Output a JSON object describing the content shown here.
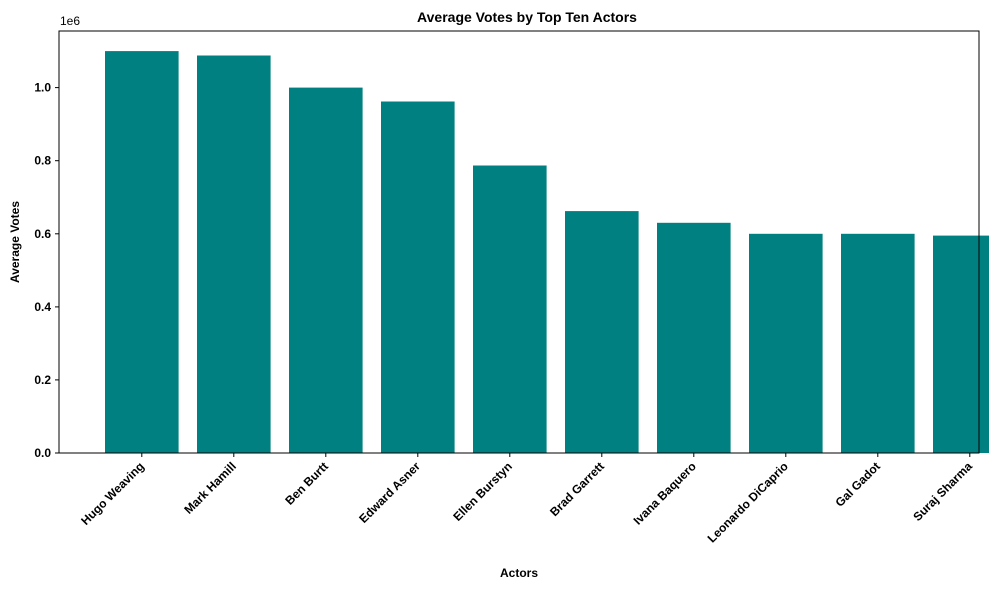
{
  "chart_data": {
    "type": "bar",
    "title": "Average Votes by Top Ten Actors",
    "xlabel": "Actors",
    "ylabel": "Average Votes",
    "y_offset_label": "1e6",
    "categories": [
      "Hugo Weaving",
      "Mark Hamill",
      "Ben Burtt",
      "Edward Asner",
      "Ellen Burstyn",
      "Brad Garrett",
      "Ivana Baquero",
      "Leonardo DiCaprio",
      "Gal Gadot",
      "Suraj Sharma"
    ],
    "values": [
      1100000,
      1088000,
      1000000,
      962000,
      787000,
      662000,
      630000,
      600000,
      600000,
      595000
    ],
    "ylim": [
      0,
      1100000
    ],
    "yticks": [
      0,
      200000,
      400000,
      600000,
      800000,
      1000000
    ],
    "ytick_labels": [
      "0.0",
      "0.2",
      "0.4",
      "0.6",
      "0.8",
      "1.0"
    ],
    "bar_color": "#008080",
    "grid": false,
    "legend": "none"
  }
}
